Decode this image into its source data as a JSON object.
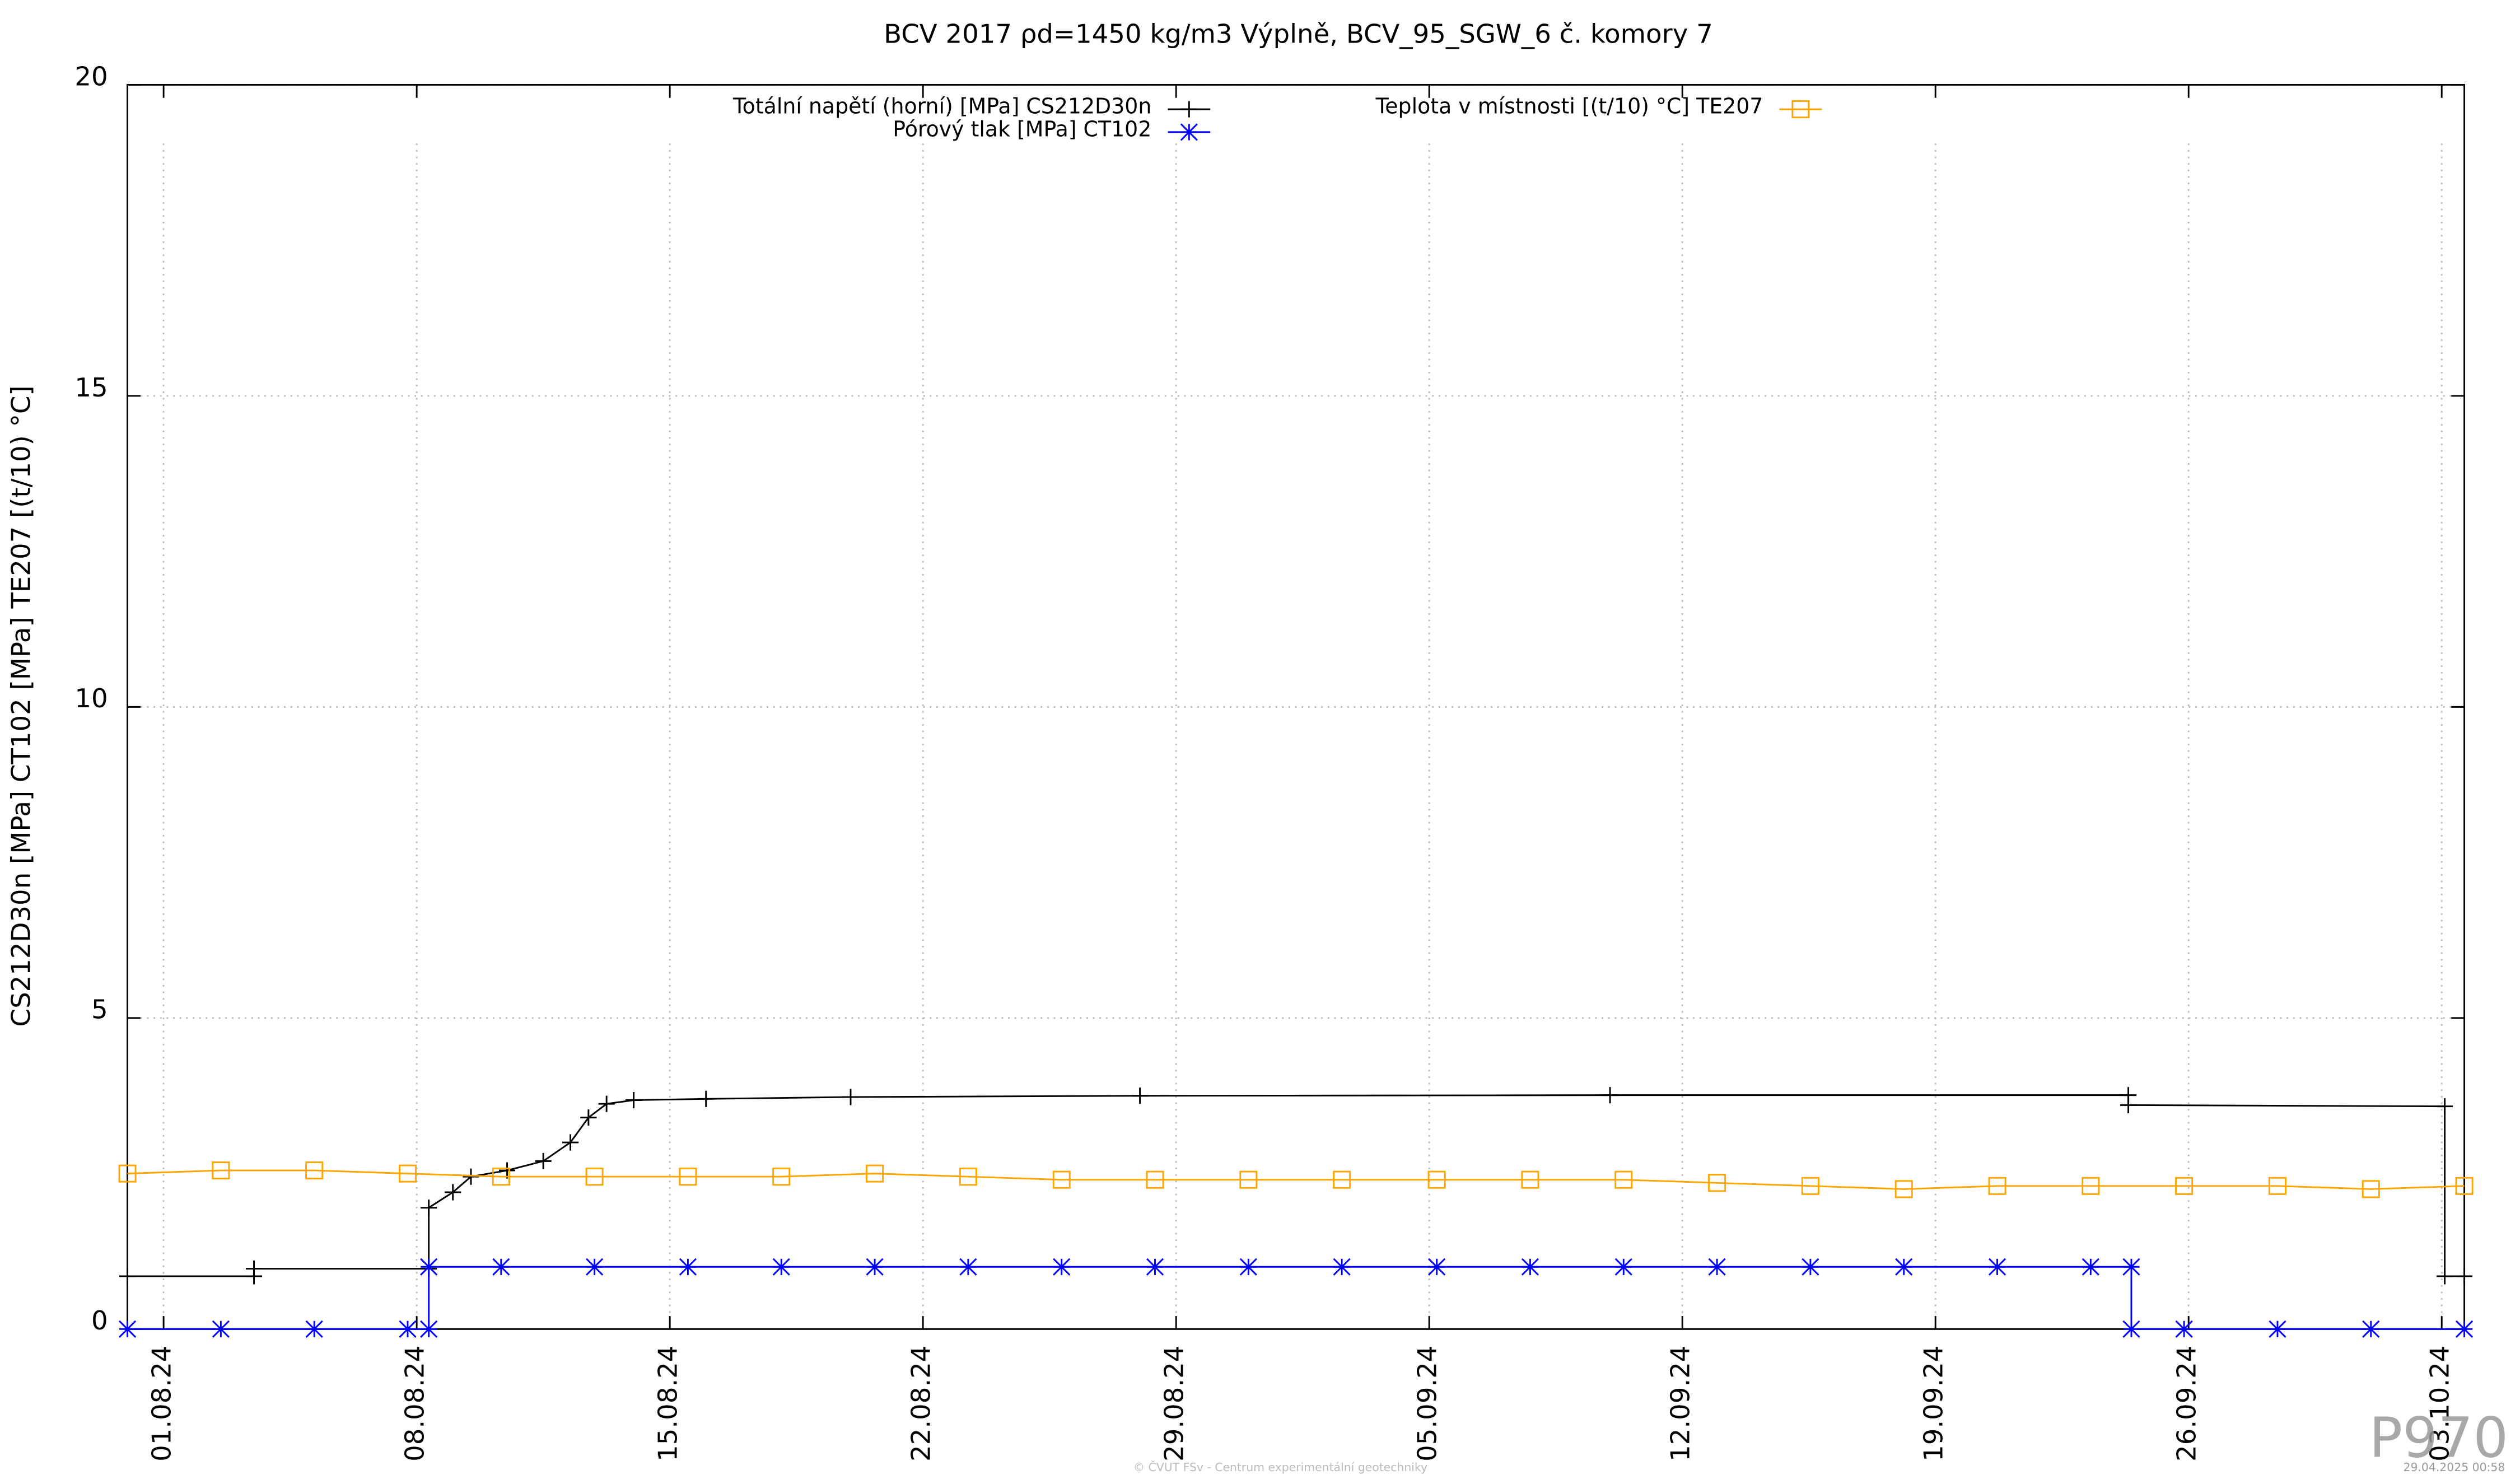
{
  "chart_data": {
    "type": "line",
    "title": "BCV 2017 ρd=1450 kg/m3 Výplně, BCV_95_SGW_6 č. komory 7",
    "y_label": "CS212D30n [MPa] CT102 [MPa] TE207 [(t/10) °C]",
    "footer": "© ČVUT FSv - Centrum experimentální geotechniky",
    "timestamp": "29.04.2025 00:58",
    "watermark": "P970",
    "xlim": [
      "2024-07-31T00:00",
      "2024-10-03T15:00"
    ],
    "xticks": [
      {
        "value": "2024-08-01",
        "label": "01.08.24"
      },
      {
        "value": "2024-08-08",
        "label": "08.08.24"
      },
      {
        "value": "2024-08-15",
        "label": "15.08.24"
      },
      {
        "value": "2024-08-22",
        "label": "22.08.24"
      },
      {
        "value": "2024-08-29",
        "label": "29.08.24"
      },
      {
        "value": "2024-09-05",
        "label": "05.09.24"
      },
      {
        "value": "2024-09-12",
        "label": "12.09.24"
      },
      {
        "value": "2024-09-19",
        "label": "19.09.24"
      },
      {
        "value": "2024-09-26",
        "label": "26.09.24"
      },
      {
        "value": "2024-10-03",
        "label": "03.10.24"
      }
    ],
    "ylim": [
      0,
      20
    ],
    "yticks": [
      0,
      5,
      10,
      15,
      20
    ],
    "grid": true,
    "series": [
      {
        "name": "Totální napětí (horní) [MPa] CS212D30n",
        "color": "#000000",
        "marker": "plus",
        "x": [
          "2024-07-31T00:00",
          "2024-08-03T12:00",
          "2024-08-03T12:00",
          "2024-08-08T08:00",
          "2024-08-08T08:00",
          "2024-08-09T00:00",
          "2024-08-09T12:00",
          "2024-08-10T12:00",
          "2024-08-11T12:00",
          "2024-08-12T06:00",
          "2024-08-12T18:00",
          "2024-08-13T06:00",
          "2024-08-14T00:00",
          "2024-08-16T00:00",
          "2024-08-20T00:00",
          "2024-08-28T00:00",
          "2024-09-10T00:00",
          "2024-09-24T08:00",
          "2024-09-24T08:00",
          "2024-10-03T02:00",
          "2024-10-03T02:00",
          "2024-10-03T15:00"
        ],
        "values": [
          0.85,
          0.85,
          0.97,
          0.97,
          1.95,
          2.2,
          2.45,
          2.55,
          2.7,
          3.0,
          3.4,
          3.62,
          3.68,
          3.7,
          3.73,
          3.75,
          3.76,
          3.76,
          3.6,
          3.58,
          0.85,
          0.85
        ]
      },
      {
        "name": "Pórový tlak [MPa] CT102",
        "color": "#0000ff",
        "marker": "star",
        "x": [
          "2024-07-31T00:00",
          "2024-08-02T14:00",
          "2024-08-05T04:00",
          "2024-08-07T18:00",
          "2024-08-08T08:00",
          "2024-08-08T08:00",
          "2024-08-10T08:00",
          "2024-08-12T22:00",
          "2024-08-15T12:00",
          "2024-08-18T02:00",
          "2024-08-20T16:00",
          "2024-08-23T06:00",
          "2024-08-25T20:00",
          "2024-08-28T10:00",
          "2024-08-31T00:00",
          "2024-09-02T14:00",
          "2024-09-05T05:00",
          "2024-09-07T19:00",
          "2024-09-10T09:00",
          "2024-09-12T23:00",
          "2024-09-15T13:00",
          "2024-09-18T03:00",
          "2024-09-20T17:00",
          "2024-09-23T07:00",
          "2024-09-24T10:00",
          "2024-09-24T10:00",
          "2024-09-25T21:00",
          "2024-09-28T11:00",
          "2024-10-01T01:00",
          "2024-10-03T15:00"
        ],
        "values": [
          0,
          0,
          0,
          0,
          0,
          1,
          1,
          1,
          1,
          1,
          1,
          1,
          1,
          1,
          1,
          1,
          1,
          1,
          1,
          1,
          1,
          1,
          1,
          1,
          1,
          0,
          0,
          0,
          0,
          0
        ]
      },
      {
        "name": "Teplota v místnosti [(t/10) °C] TE207",
        "color": "#ffa500",
        "marker": "square",
        "x": [
          "2024-07-31T00:00",
          "2024-08-02T14:00",
          "2024-08-05T04:00",
          "2024-08-07T18:00",
          "2024-08-10T08:00",
          "2024-08-12T22:00",
          "2024-08-15T12:00",
          "2024-08-18T02:00",
          "2024-08-20T16:00",
          "2024-08-23T06:00",
          "2024-08-25T20:00",
          "2024-08-28T10:00",
          "2024-08-31T00:00",
          "2024-09-02T14:00",
          "2024-09-05T05:00",
          "2024-09-07T19:00",
          "2024-09-10T09:00",
          "2024-09-12T23:00",
          "2024-09-15T13:00",
          "2024-09-18T03:00",
          "2024-09-20T17:00",
          "2024-09-23T07:00",
          "2024-09-25T21:00",
          "2024-09-28T11:00",
          "2024-10-01T01:00",
          "2024-10-03T15:00"
        ],
        "values": [
          2.5,
          2.55,
          2.55,
          2.5,
          2.45,
          2.45,
          2.45,
          2.45,
          2.5,
          2.45,
          2.4,
          2.4,
          2.4,
          2.4,
          2.4,
          2.4,
          2.4,
          2.35,
          2.3,
          2.25,
          2.3,
          2.3,
          2.3,
          2.3,
          2.25,
          2.3
        ]
      }
    ]
  }
}
